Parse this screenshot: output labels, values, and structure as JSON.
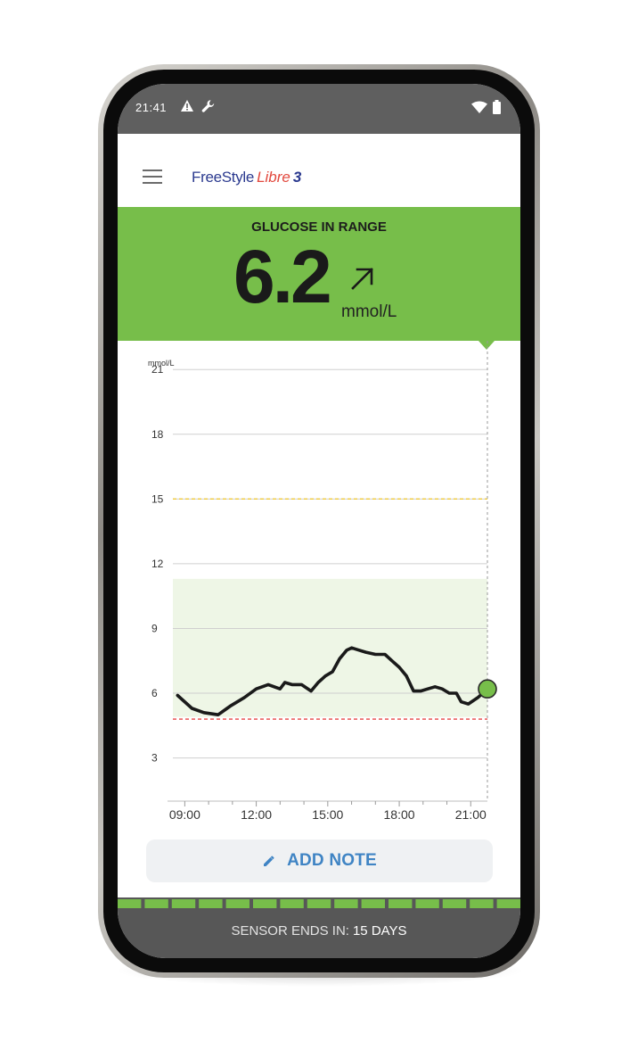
{
  "status_bar": {
    "time": "21:41",
    "icons": [
      "warning-icon",
      "wrench-icon",
      "wifi-icon",
      "battery-icon"
    ]
  },
  "app_bar": {
    "menu_icon": "hamburger-menu-icon",
    "logo": {
      "part1": "FreeStyle",
      "part2": "Libre",
      "part3": "3"
    }
  },
  "glucose": {
    "title": "GLUCOSE IN RANGE",
    "value": "6.2",
    "trend": "rising-arrow-icon",
    "unit": "mmol/L",
    "banner_color": "#77be4a"
  },
  "chart_data": {
    "type": "line",
    "ylabel": "mmol/L",
    "y_ticks": [
      21,
      18,
      15,
      12,
      9,
      6,
      3
    ],
    "ylim": [
      1.0,
      22.0
    ],
    "x_tick_labels": [
      "09:00",
      "12:00",
      "15:00",
      "18:00",
      "21:00"
    ],
    "x_ticks_hours": [
      9,
      12,
      15,
      18,
      21
    ],
    "xlim_hours": [
      8.5,
      21.7
    ],
    "target_range": [
      4.9,
      11.3
    ],
    "high_threshold": 15.0,
    "low_threshold": 4.8,
    "current_time_hours": 21.7,
    "grid": true,
    "colors": {
      "line": "#1a1a1a",
      "range_fill": "#eef6e6",
      "high_line": "#f0c93a",
      "low_line": "#e64545",
      "current_point": "#77be4a",
      "grid": "#cfcfcf"
    },
    "series": [
      {
        "x": [
          8.7,
          9.3,
          9.8,
          10.4,
          10.9,
          11.5,
          12.0,
          12.5,
          13.0,
          13.2,
          13.5,
          13.9,
          14.3,
          14.6,
          14.9,
          15.2,
          15.5,
          15.8,
          16.0,
          16.3,
          16.6,
          17.0,
          17.4,
          17.7,
          18.0,
          18.3,
          18.6,
          18.9,
          19.2,
          19.5,
          19.8,
          20.1,
          20.4,
          20.6,
          20.9,
          21.3,
          21.7
        ],
        "y": [
          5.9,
          5.3,
          5.1,
          5.0,
          5.4,
          5.8,
          6.2,
          6.4,
          6.2,
          6.5,
          6.4,
          6.4,
          6.1,
          6.5,
          6.8,
          7.0,
          7.6,
          8.0,
          8.1,
          8.0,
          7.9,
          7.8,
          7.8,
          7.5,
          7.2,
          6.8,
          6.1,
          6.1,
          6.2,
          6.3,
          6.2,
          6.0,
          6.0,
          5.6,
          5.5,
          5.8,
          6.2
        ]
      }
    ]
  },
  "add_note": {
    "label": "ADD NOTE",
    "icon": "pencil-icon"
  },
  "sensor": {
    "label": "SENSOR ENDS IN:",
    "days": "15 DAYS",
    "segments": 15,
    "segment_color": "#77be4a"
  }
}
